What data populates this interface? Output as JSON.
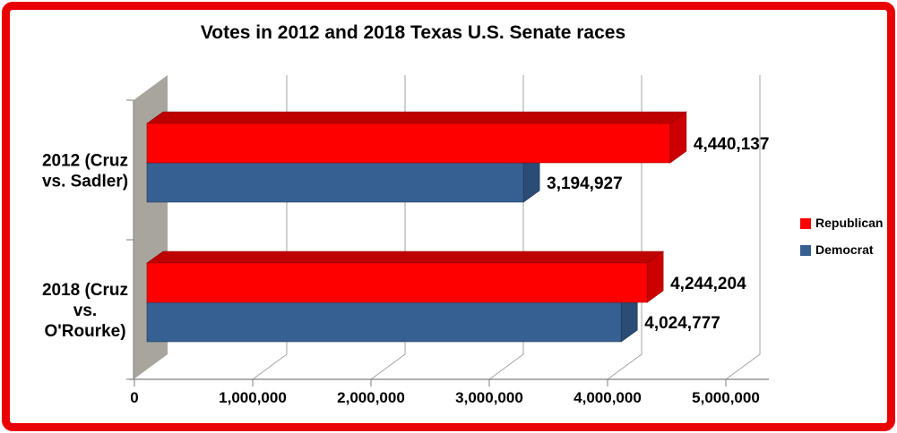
{
  "frame": {
    "border_color": "#ea0000"
  },
  "title": "Votes in 2012 and 2018 Texas U.S. Senate races",
  "legend": [
    {
      "label": "Republican",
      "color": "#fe0000"
    },
    {
      "label": "Democrat",
      "color": "#376092"
    }
  ],
  "chart_data": {
    "type": "bar",
    "orientation": "horizontal",
    "effect": "3d",
    "title": "Votes in 2012 and 2018 Texas U.S. Senate races",
    "categories": [
      "2012 (Cruz vs. Sadler)",
      "2018 (Cruz vs. O'Rourke)"
    ],
    "category_label_lines": [
      [
        "2012 (Cruz",
        "vs. Sadler)"
      ],
      [
        "2018 (Cruz",
        "vs.",
        "O'Rourke)"
      ]
    ],
    "series": [
      {
        "name": "Republican",
        "color": "#fe0000",
        "top_color": "#bf0000",
        "side_color": "#cc0000",
        "edge_color": "#8f0000",
        "values": [
          4440137,
          4244204
        ],
        "value_labels": [
          "4,440,137",
          "4,244,204"
        ]
      },
      {
        "name": "Democrat",
        "color": "#376092",
        "top_color": "#23405f",
        "side_color": "#2b4c74",
        "edge_color": "#1c3350",
        "values": [
          3194927,
          4024777
        ],
        "value_labels": [
          "3,194,927",
          "4,024,777"
        ]
      }
    ],
    "x_ticks": [
      0,
      1000000,
      2000000,
      3000000,
      4000000,
      5000000
    ],
    "x_tick_labels": [
      "0",
      "1,000,000",
      "2,000,000",
      "3,000,000",
      "4,000,000",
      "5,000,000"
    ],
    "xlim": [
      0,
      5000000
    ],
    "grid": true,
    "legend_position": "right",
    "colors": {
      "wall": "#a8a59e",
      "gridline": "#a3a3a3",
      "axis": "#7f7f7f"
    }
  }
}
